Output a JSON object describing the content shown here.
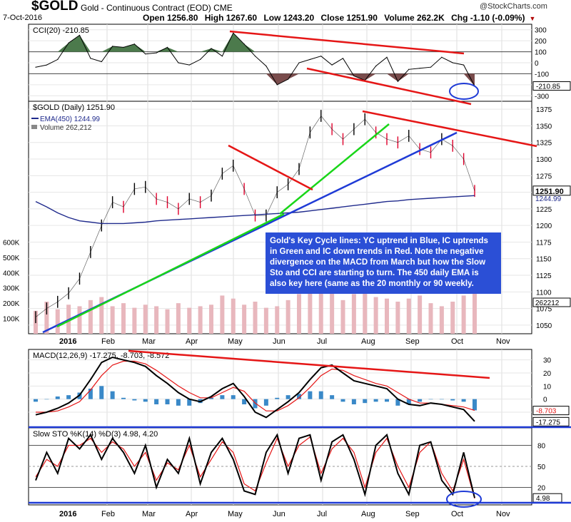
{
  "header": {
    "symbol": "$GOLD",
    "name": "Gold - Continuous Contract (EOD)",
    "exchange": "CME",
    "date": "7-Oct-2016",
    "open_label": "Open 1256.80",
    "high_label": "High 1267.60",
    "low_label": "Low 1243.20",
    "close_label": "Close 1251.90",
    "volume_label": "Volume 262.2K",
    "chg_label": "Chg -1.10 (-0.09%)",
    "brand": "@StockCharts.com"
  },
  "annotation": "Gold's Key Cycle lines: YC uptrend in Blue, IC uptrends in Green and IC down trends in Red. Note the negative divergence on the MACD from March but how the Slow Sto and CCI are starting to turn. The 450 daily EMA is also key here (same as the 20 monthly or 90 weekly.",
  "colors": {
    "price_up": "#000000",
    "price_down": "#e0002c",
    "ema": "#1f2a8c",
    "volume": "#e8b7bd",
    "uptrend_yc": "#1f3bd6",
    "uptrend_ic": "#19d619",
    "downtrend_ic": "#e51616",
    "cci_pos_fill": "#4c7a4c",
    "cci_neg_fill": "#7a4c4c",
    "macd_line": "#000000",
    "macd_signal": "#e51616",
    "macd_hist": "#3a89c8",
    "sto_k": "#000000",
    "sto_d": "#e51616"
  },
  "chart_data": [
    {
      "type": "line",
      "panel": "cci",
      "title": "CCI(20) -210.85",
      "last_value": "-210.85",
      "ylim": [
        -350,
        350
      ],
      "yticks": [
        "300",
        "200",
        "100",
        "0",
        "-100",
        "-200",
        "-300"
      ],
      "x": [
        0,
        5,
        10,
        15,
        20,
        25,
        30,
        35,
        40,
        45,
        50,
        55,
        60,
        65,
        70,
        75,
        80,
        85,
        90,
        95,
        100,
        105,
        110,
        115,
        120,
        125,
        130,
        135,
        140,
        145,
        150,
        155,
        160,
        165,
        170,
        175,
        180,
        185,
        190,
        195,
        200
      ],
      "series": [
        {
          "values": [
            -40,
            -20,
            30,
            180,
            250,
            40,
            10,
            150,
            140,
            170,
            80,
            90,
            140,
            0,
            -20,
            30,
            130,
            60,
            270,
            170,
            60,
            -30,
            -200,
            -150,
            0,
            30,
            60,
            -20,
            40,
            -120,
            -160,
            -30,
            50,
            -170,
            -60,
            -50,
            -40,
            50,
            0,
            -20,
            -211
          ]
        }
      ]
    },
    {
      "type": "line",
      "panel": "price",
      "title": "$GOLD (Daily) 1251.90",
      "legend": [
        "$GOLD (Daily) 1251.90",
        "EMA(450) 1244.99",
        "Volume 262,212"
      ],
      "price_label": "1251.90",
      "ema_label": "1244.99",
      "volume_label": "262212",
      "ylim": [
        1037,
        1387
      ],
      "yticks": [
        "1375",
        "1350",
        "1325",
        "1300",
        "1275",
        "1250",
        "1225",
        "1200",
        "1175",
        "1150",
        "1125",
        "1100",
        "1075",
        "1050"
      ],
      "volume_ticks": [
        "600K",
        "500K",
        "400K",
        "300K",
        "200K",
        "100K"
      ],
      "x": [
        0,
        5,
        10,
        15,
        20,
        25,
        30,
        35,
        40,
        45,
        50,
        55,
        60,
        65,
        70,
        75,
        80,
        85,
        90,
        95,
        100,
        105,
        110,
        115,
        120,
        125,
        130,
        135,
        140,
        145,
        150,
        155,
        160,
        165,
        170,
        175,
        180,
        185,
        190,
        195,
        200
      ],
      "series": [
        {
          "name": "$GOLD (Daily)",
          "values": [
            1062,
            1075,
            1085,
            1098,
            1120,
            1160,
            1200,
            1235,
            1228,
            1255,
            1258,
            1240,
            1235,
            1225,
            1240,
            1235,
            1245,
            1278,
            1290,
            1255,
            1215,
            1215,
            1250,
            1262,
            1285,
            1340,
            1365,
            1345,
            1330,
            1345,
            1360,
            1340,
            1330,
            1325,
            1335,
            1315,
            1310,
            1330,
            1320,
            1300,
            1252
          ]
        },
        {
          "name": "EMA(450)",
          "values": [
            1236,
            1228,
            1219,
            1212,
            1207,
            1205,
            1203,
            1203,
            1203,
            1204,
            1205,
            1207,
            1208,
            1209,
            1210,
            1211,
            1212,
            1213,
            1214,
            1215,
            1216,
            1217,
            1218,
            1219,
            1220,
            1222,
            1224,
            1226,
            1228,
            1230,
            1232,
            1234,
            1236,
            1237,
            1239,
            1240,
            1241,
            1242,
            1243,
            1244,
            1245
          ]
        },
        {
          "name": "Volume",
          "values": [
            150,
            210,
            160,
            190,
            180,
            220,
            240,
            180,
            200,
            170,
            190,
            180,
            160,
            200,
            170,
            180,
            190,
            250,
            230,
            190,
            210,
            170,
            180,
            220,
            260,
            280,
            300,
            270,
            220,
            260,
            330,
            240,
            230,
            210,
            230,
            250,
            200,
            180,
            210,
            250,
            262
          ]
        }
      ]
    },
    {
      "type": "line",
      "panel": "macd",
      "title": "MACD(12,26,9) -17.275, -8.703, -8.572",
      "ylim": [
        -22,
        38
      ],
      "yticks": [
        "30",
        "20",
        "10",
        "0",
        "-10"
      ],
      "labels": [
        "-8.703",
        "-17.275"
      ],
      "x": [
        0,
        5,
        10,
        15,
        20,
        25,
        30,
        35,
        40,
        45,
        50,
        55,
        60,
        65,
        70,
        75,
        80,
        85,
        90,
        95,
        100,
        105,
        110,
        115,
        120,
        125,
        130,
        135,
        140,
        145,
        150,
        155,
        160,
        165,
        170,
        175,
        180,
        185,
        190,
        195,
        200
      ],
      "series": [
        {
          "name": "MACD",
          "values": [
            -12,
            -10,
            -7,
            -3,
            3,
            15,
            28,
            32,
            30,
            28,
            25,
            18,
            12,
            5,
            0,
            -2,
            2,
            8,
            12,
            2,
            -10,
            -14,
            -8,
            -2,
            5,
            15,
            24,
            26,
            20,
            14,
            12,
            10,
            8,
            0,
            -4,
            -5,
            -3,
            -4,
            -6,
            -8,
            -17
          ]
        },
        {
          "name": "Signal",
          "values": [
            -10,
            -10,
            -9,
            -6,
            -2,
            7,
            18,
            26,
            29,
            29,
            27,
            22,
            16,
            10,
            5,
            1,
            1,
            5,
            9,
            6,
            -3,
            -9,
            -9,
            -5,
            1,
            9,
            18,
            23,
            22,
            18,
            15,
            12,
            10,
            5,
            0,
            -3,
            -3,
            -4,
            -5,
            -6,
            -8.7
          ]
        },
        {
          "name": "Histogram",
          "values": [
            -2,
            0,
            2,
            3,
            5,
            8,
            10,
            6,
            1,
            -1,
            -2,
            -4,
            -4,
            -5,
            -5,
            -3,
            1,
            3,
            3,
            -4,
            -7,
            -5,
            1,
            3,
            4,
            6,
            6,
            3,
            -2,
            -4,
            -3,
            -2,
            -2,
            -5,
            -4,
            -2,
            0,
            0,
            -1,
            -2,
            -8.6
          ]
        }
      ]
    },
    {
      "type": "line",
      "panel": "stochastic",
      "title": "Slow STO %K(14) %D(3) 4.98, 4.20",
      "ylim": [
        -5,
        105
      ],
      "yticks": [
        "80",
        "50",
        "20"
      ],
      "last_value": "4.98",
      "x": [
        0,
        5,
        10,
        15,
        20,
        25,
        30,
        35,
        40,
        45,
        50,
        55,
        60,
        65,
        70,
        75,
        80,
        85,
        90,
        95,
        100,
        105,
        110,
        115,
        120,
        125,
        130,
        135,
        140,
        145,
        150,
        155,
        160,
        165,
        170,
        175,
        180,
        185,
        190,
        195,
        200
      ],
      "series": [
        {
          "name": "%K",
          "values": [
            30,
            70,
            40,
            90,
            75,
            95,
            60,
            90,
            70,
            40,
            80,
            20,
            60,
            40,
            90,
            25,
            70,
            90,
            60,
            15,
            10,
            70,
            95,
            40,
            90,
            95,
            30,
            85,
            95,
            60,
            10,
            80,
            95,
            40,
            10,
            80,
            85,
            30,
            10,
            70,
            5
          ]
        },
        {
          "name": "%D",
          "values": [
            35,
            60,
            50,
            80,
            80,
            90,
            70,
            85,
            75,
            50,
            70,
            30,
            55,
            45,
            80,
            35,
            60,
            85,
            70,
            25,
            15,
            55,
            90,
            50,
            80,
            92,
            40,
            75,
            90,
            70,
            20,
            70,
            90,
            50,
            20,
            70,
            85,
            40,
            15,
            60,
            4.2
          ]
        }
      ]
    }
  ],
  "x_axis": {
    "year": "2016",
    "months": [
      "Feb",
      "Mar",
      "Apr",
      "May",
      "Jun",
      "Jul",
      "Aug",
      "Sep",
      "Oct",
      "Nov"
    ]
  }
}
